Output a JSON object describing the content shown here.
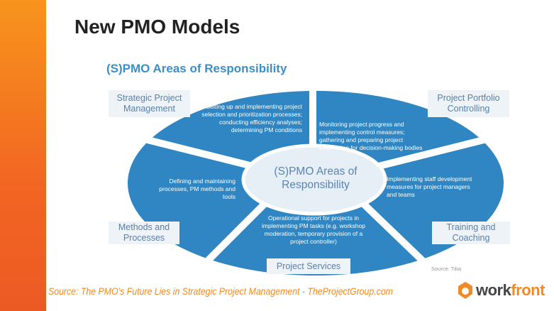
{
  "title": "New PMO Models",
  "diagram": {
    "heading": "(S)PMO Areas of Responsibility",
    "center": "(S)PMO Areas of Responsibility",
    "segments": [
      {
        "label": "Strategic Project Management",
        "text": "Setting up and implementing project selection and prioritization processes; conducting efficiency analyses; determining PM conditions"
      },
      {
        "label": "Project Portfolio Controlling",
        "text": "Monitoring project progress and implementing control measures; gathering and preparing project information for decision-making bodies"
      },
      {
        "label": "Training and Coaching",
        "text": "Implementing staff development measures for project managers and teams"
      },
      {
        "label": "Project Services",
        "text": "Operational support for projects in implementing PM tasks (e.g. workshop moderation, temporary provision of a project controller)"
      },
      {
        "label": "Methods and Processes",
        "text": "Defining and maintaining processes, PM methods and tools"
      }
    ],
    "source_note": "Source: Tiba",
    "colors": {
      "segment": "#2f86c3",
      "label_bg": "#eef3f8",
      "label_text": "#5a7fa8"
    }
  },
  "footer": {
    "source": "Source: The PMO’s Future Lies in Strategic Project Management - TheProjectGroup.com",
    "logo": "workfront"
  }
}
